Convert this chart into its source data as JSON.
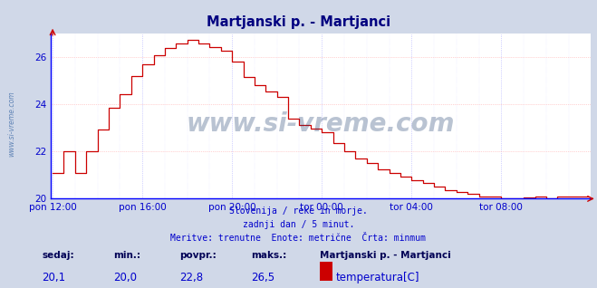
{
  "title": "Martjanski p. - Martjanci",
  "title_color": "#000080",
  "bg_color": "#d0d8e8",
  "plot_bg_color": "#ffffff",
  "line_color": "#cc0000",
  "grid_color_v": "#aaaaff",
  "grid_color_h": "#ffaaaa",
  "axis_color": "#0000cc",
  "text_color_blue": "#0000cc",
  "text_color_dark": "#000055",
  "watermark": "www.si-vreme.com",
  "ylabel_text": "www.si-vreme.com",
  "footer_line1": "Slovenija / reke in morje.",
  "footer_line2": "zadnji dan / 5 minut.",
  "footer_line3": "Meritve: trenutne  Enote: metrične  Črta: minmum",
  "stat_sedaj_label": "sedaj:",
  "stat_min_label": "min.:",
  "stat_povpr_label": "povpr.:",
  "stat_maks_label": "maks.:",
  "stat_sedaj_val": "20,1",
  "stat_min_val": "20,0",
  "stat_povpr_val": "22,8",
  "stat_maks_val": "26,5",
  "legend_name": "Martjanski p. - Martjanci",
  "legend_unit": "temperatura[C]",
  "legend_color": "#cc0000",
  "ylim": [
    20,
    27
  ],
  "yticks": [
    20,
    22,
    24,
    26
  ],
  "xtick_labels": [
    "pon 12:00",
    "pon 16:00",
    "pon 20:00",
    "tor 00:00",
    "tor 04:00",
    "tor 08:00"
  ],
  "xtick_positions": [
    0,
    48,
    96,
    144,
    192,
    240
  ],
  "total_points": 288,
  "bottom_line_color": "#0000ff",
  "left_axis_color": "#0000ff"
}
